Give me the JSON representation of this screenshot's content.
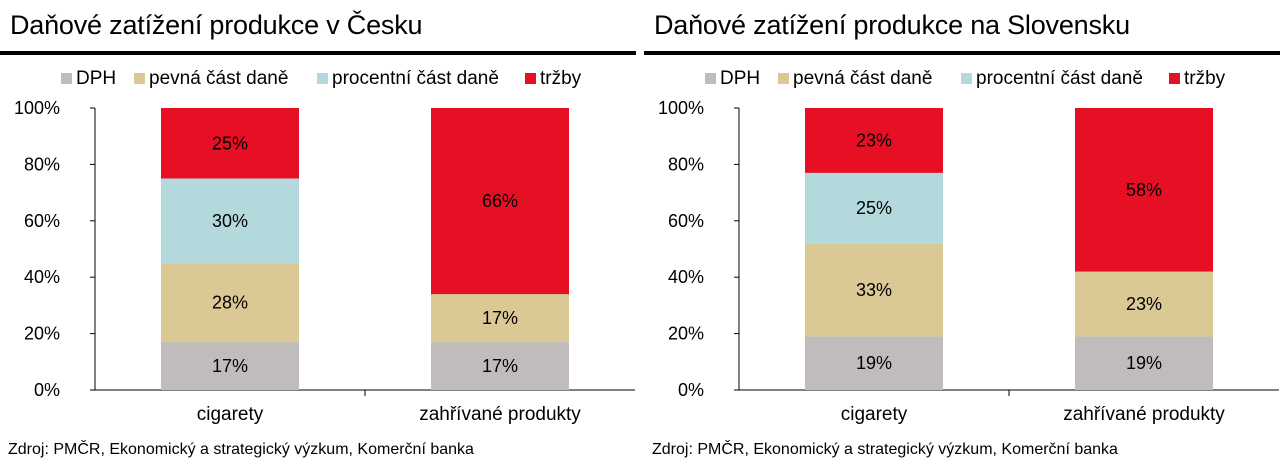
{
  "chart_data": [
    {
      "type": "bar",
      "stacked": true,
      "title": "Daňové zatížení produkce v Česku",
      "source": "Zdroj: PMČR, Ekonomický a strategický výzkum, Komerční banka",
      "categories": [
        "cigarety",
        "zahřívané produkty"
      ],
      "series": [
        {
          "name": "DPH",
          "color": "#c0bcbc",
          "values": [
            17,
            17
          ]
        },
        {
          "name": "pevná část daně",
          "color": "#dac895",
          "values": [
            28,
            17
          ]
        },
        {
          "name": "procentní část daně",
          "color": "#b4d9dd",
          "values": [
            30,
            0
          ]
        },
        {
          "name": "tržby",
          "color": "#e60f24",
          "values": [
            25,
            66
          ]
        }
      ],
      "ylim": [
        0,
        100
      ],
      "yticks": [
        "0%",
        "20%",
        "40%",
        "60%",
        "80%",
        "100%"
      ],
      "legend_position": "top"
    },
    {
      "type": "bar",
      "stacked": true,
      "title": "Daňové zatížení produkce na Slovensku",
      "source": "Zdroj: PMČR, Ekonomický a strategický výzkum, Komerční banka",
      "categories": [
        "cigarety",
        "zahřívané produkty"
      ],
      "series": [
        {
          "name": "DPH",
          "color": "#c0bcbc",
          "values": [
            19,
            19
          ]
        },
        {
          "name": "pevná část daně",
          "color": "#dac895",
          "values": [
            33,
            23
          ]
        },
        {
          "name": "procentní část daně",
          "color": "#b4d9dd",
          "values": [
            25,
            0
          ]
        },
        {
          "name": "tržby",
          "color": "#e60f24",
          "values": [
            23,
            58
          ]
        }
      ],
      "ylim": [
        0,
        100
      ],
      "yticks": [
        "0%",
        "20%",
        "40%",
        "60%",
        "80%",
        "100%"
      ],
      "legend_position": "top"
    }
  ]
}
